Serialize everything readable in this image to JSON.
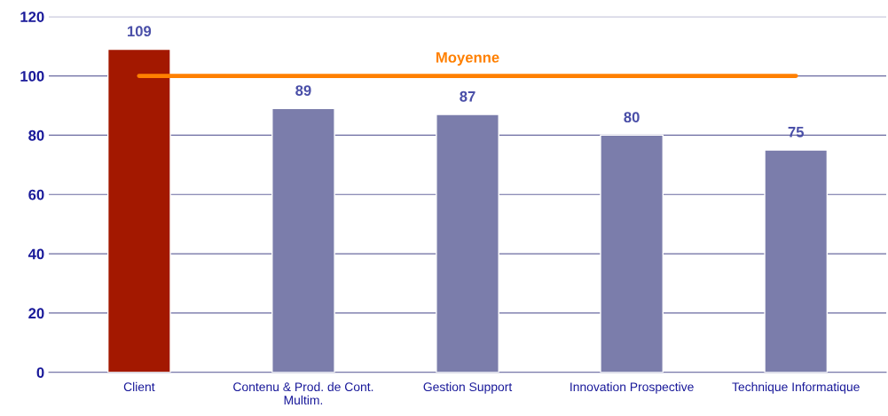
{
  "chart_data": {
    "type": "bar",
    "categories": [
      "Client",
      "Contenu & Prod. de Cont.\nMultim.",
      "Gestion Support",
      "Innovation Prospective",
      "Technique Informatique"
    ],
    "values": [
      109,
      89,
      87,
      80,
      75
    ],
    "colors": [
      "#a31800",
      "#7b7dab",
      "#7b7dab",
      "#7b7dab",
      "#7b7dab"
    ],
    "data_labels": true,
    "ylim": [
      0,
      120
    ],
    "yticks": [
      0,
      20,
      40,
      60,
      80,
      100,
      120
    ],
    "grid": "y",
    "ref_lines": [
      {
        "axis": "y",
        "value": 100,
        "label": "Moyenne",
        "color": "#ff8000"
      }
    ]
  }
}
